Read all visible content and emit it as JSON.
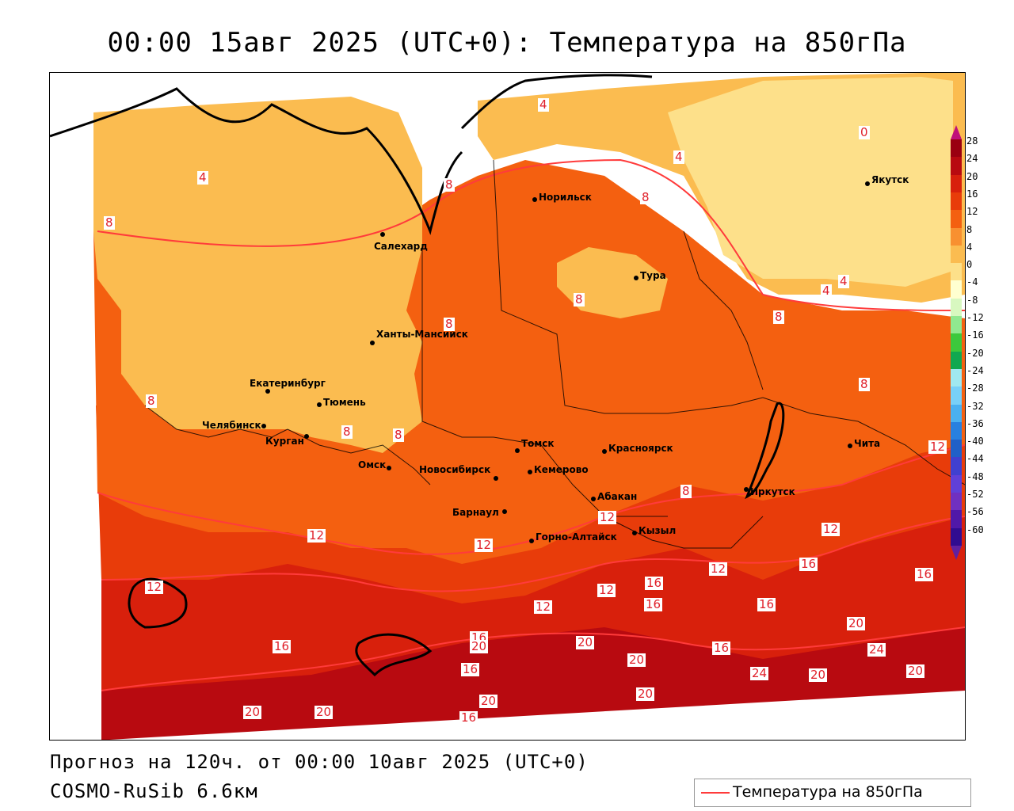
{
  "title": "00:00 15авг 2025 (UTC+0): Температура на 850гПа",
  "footer": {
    "forecast": "Прогноз на 120ч. от 00:00 10авг 2025 (UTC+0)",
    "model": "COSMO-RuSib 6.6км"
  },
  "legend": {
    "label": "Температура на 850гПа",
    "line_color": "#ff3b3b"
  },
  "colorbar": {
    "labels": [
      "28",
      "24",
      "20",
      "16",
      "12",
      "8",
      "4",
      "0",
      "-4",
      "-8",
      "-12",
      "-16",
      "-20",
      "-24",
      "-28",
      "-32",
      "-36",
      "-40",
      "-44",
      "-48",
      "-52",
      "-56",
      "-60"
    ],
    "colors": [
      "#9a0010",
      "#b80a10",
      "#d8200c",
      "#e83c0a",
      "#f46010",
      "#f89030",
      "#fbbc50",
      "#fde08a",
      "#ffffd0",
      "#d8f8c0",
      "#90e890",
      "#3cc83c",
      "#10a850",
      "#a0e8f0",
      "#78d0f8",
      "#4ab0f0",
      "#2880e0",
      "#2060c8",
      "#4040d0",
      "#6040d8",
      "#7030c0",
      "#5018a8",
      "#300c90"
    ]
  },
  "cities": [
    {
      "name": "Норильск"
    },
    {
      "name": "Якутск"
    },
    {
      "name": "Салехард"
    },
    {
      "name": "Тура"
    },
    {
      "name": "Ханты-Мансийск"
    },
    {
      "name": "Екатеринбург"
    },
    {
      "name": "Тюмень"
    },
    {
      "name": "Челябинск"
    },
    {
      "name": "Курган"
    },
    {
      "name": "Омск"
    },
    {
      "name": "Томск"
    },
    {
      "name": "Красноярск"
    },
    {
      "name": "Новосибирск"
    },
    {
      "name": "Кемерово"
    },
    {
      "name": "Абакан"
    },
    {
      "name": "Барнаул"
    },
    {
      "name": "Иркутск"
    },
    {
      "name": "Чита"
    },
    {
      "name": "Кызыл"
    },
    {
      "name": "Горно-Алтайск"
    }
  ],
  "isolines": [
    "4",
    "0",
    "4",
    "4",
    "8",
    "8",
    "8",
    "8",
    "8",
    "4",
    "4",
    "8",
    "8",
    "8",
    "8",
    "8",
    "8",
    "12",
    "12",
    "12",
    "12",
    "12",
    "12",
    "12",
    "12",
    "16",
    "16",
    "16",
    "12",
    "16",
    "16",
    "16",
    "16",
    "20",
    "20",
    "20",
    "16",
    "16",
    "20",
    "20",
    "20",
    "24",
    "24",
    "20",
    "20",
    "20",
    "16",
    "20"
  ],
  "colors": {
    "band_0_4": "#fde08a",
    "band_4_8": "#fbbc50",
    "band_8_12": "#f46010",
    "band_12_16": "#e83c0a",
    "band_16_20": "#d8200c",
    "band_20_24": "#b80a10",
    "isoline": "#ff3b3b"
  }
}
